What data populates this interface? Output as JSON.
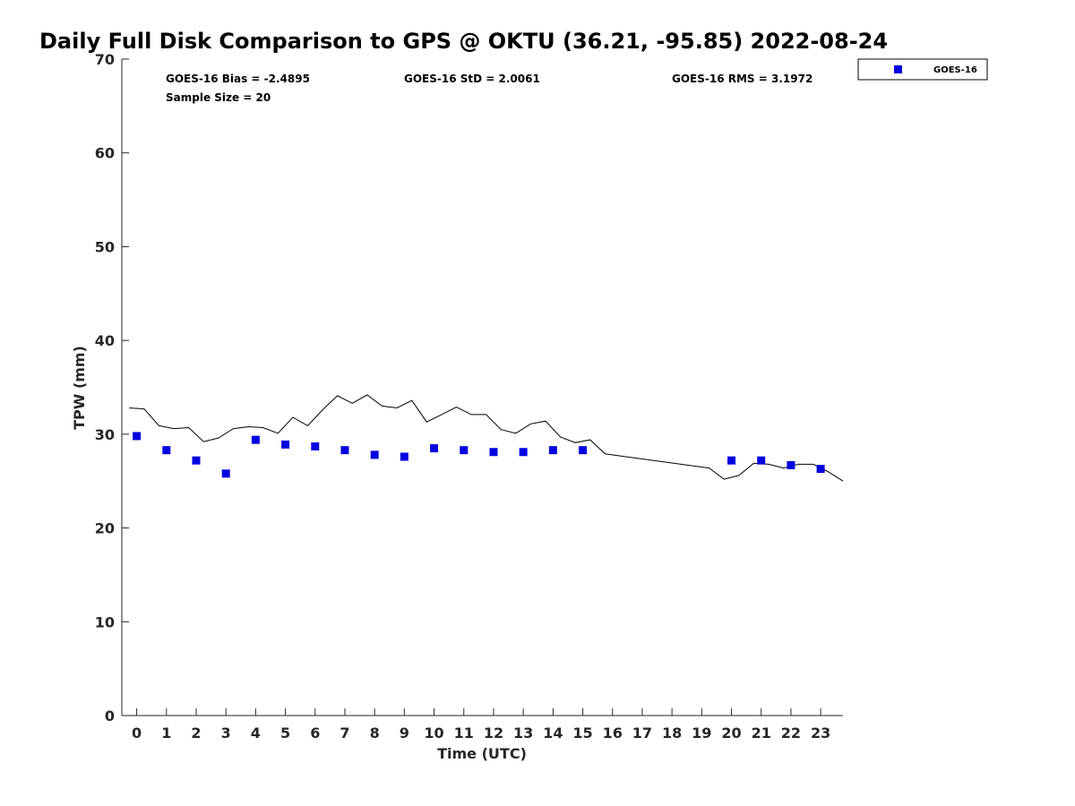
{
  "chart_data": {
    "type": "scatter",
    "title": "Daily Full Disk Comparison to GPS @ OKTU (36.21, -95.85) 2022-08-24",
    "xlabel": "Time (UTC)",
    "ylabel": "TPW (mm)",
    "xlim": [
      -0.5,
      23.75
    ],
    "ylim": [
      0,
      70
    ],
    "xticks": [
      0,
      1,
      2,
      3,
      4,
      5,
      6,
      7,
      8,
      9,
      10,
      11,
      12,
      13,
      14,
      15,
      16,
      17,
      18,
      19,
      20,
      21,
      22,
      23
    ],
    "yticks": [
      0,
      10,
      20,
      30,
      40,
      50,
      60,
      70
    ],
    "grid": false,
    "legend_position": "top-right, outside plot",
    "annotations": {
      "bias": "GOES-16 Bias = -2.4895",
      "std": "GOES-16 StD = 2.0061",
      "rms": "GOES-16 RMS = 3.1972",
      "sample_size": "Sample Size = 20"
    },
    "series": [
      {
        "name": "GOES-16",
        "kind": "scatter",
        "marker": "square",
        "color": "#0000e0",
        "x": [
          0,
          1,
          2,
          3,
          4,
          5,
          6,
          7,
          8,
          9,
          10,
          11,
          12,
          13,
          14,
          15,
          20,
          21,
          22,
          23
        ],
        "y": [
          29.8,
          28.3,
          27.2,
          25.8,
          29.4,
          28.9,
          28.7,
          28.3,
          27.8,
          27.6,
          28.5,
          28.3,
          28.1,
          28.1,
          28.3,
          28.3,
          27.2,
          27.2,
          26.7,
          26.3
        ]
      },
      {
        "kind": "line",
        "color": "#000000",
        "x": [
          -0.25,
          0.25,
          0.75,
          1.25,
          1.75,
          2.25,
          2.75,
          3.25,
          3.75,
          4.25,
          4.75,
          5.25,
          5.75,
          6.25,
          6.75,
          7.25,
          7.75,
          8.25,
          8.75,
          9.25,
          9.75,
          10.25,
          10.75,
          11.25,
          11.75,
          12.25,
          12.75,
          13.25,
          13.75,
          14.25,
          14.75,
          15.25,
          15.75,
          19.25,
          19.75,
          20.25,
          20.75,
          21.25,
          21.75,
          22.25,
          22.75,
          23.25,
          23.75
        ],
        "y": [
          32.8,
          32.7,
          30.9,
          30.6,
          30.7,
          29.2,
          29.6,
          30.6,
          30.8,
          30.7,
          30.1,
          31.8,
          30.9,
          32.6,
          34.1,
          33.3,
          34.2,
          33.0,
          32.8,
          33.6,
          31.3,
          32.1,
          32.9,
          32.1,
          32.1,
          30.5,
          30.1,
          31.1,
          31.4,
          29.7,
          29.1,
          29.4,
          27.9,
          26.4,
          25.2,
          25.6,
          26.9,
          26.8,
          26.4,
          26.8,
          26.8,
          26.0,
          25.0
        ]
      }
    ]
  }
}
